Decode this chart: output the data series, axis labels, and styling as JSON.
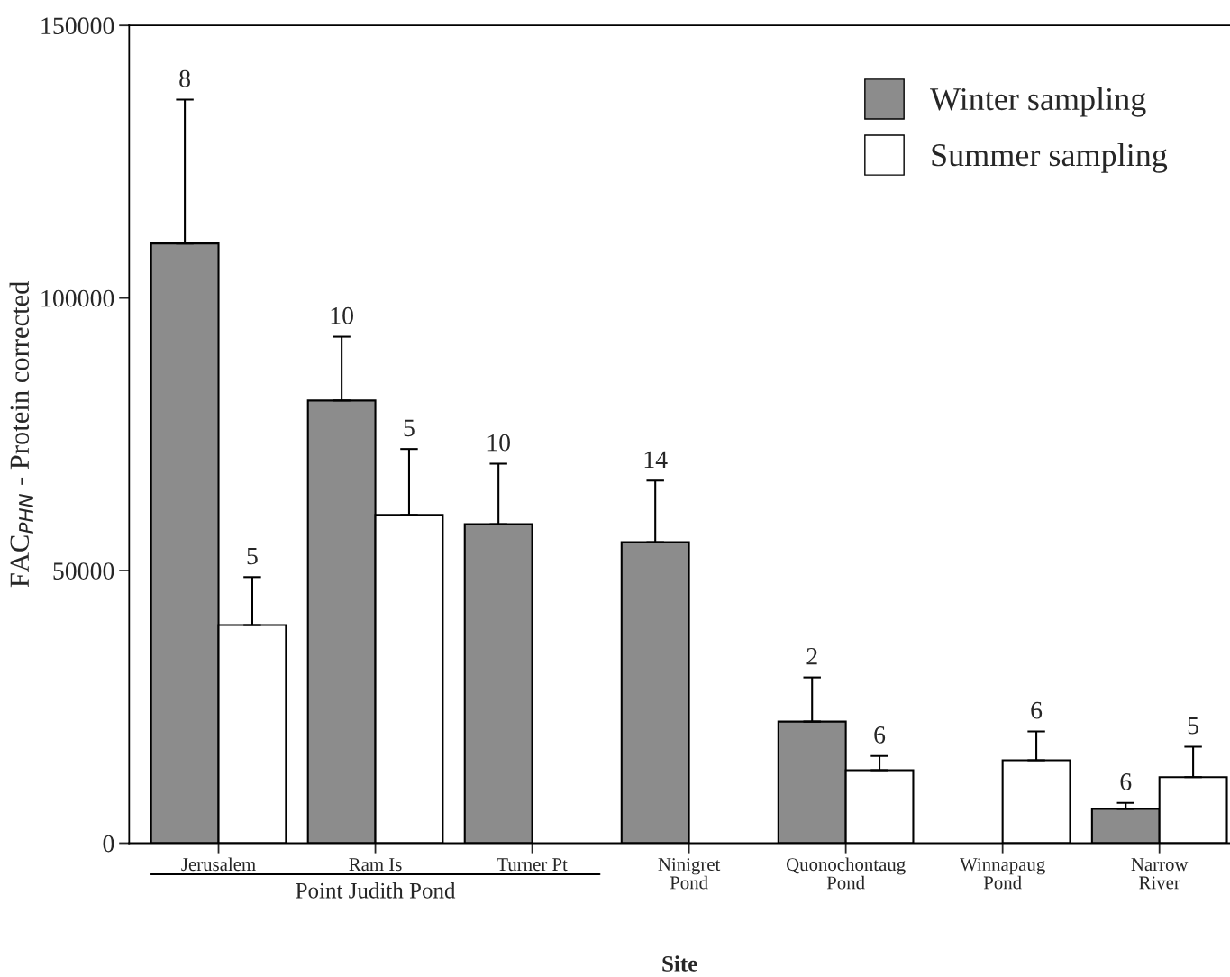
{
  "chart_data": {
    "type": "bar",
    "xlabel": "Site",
    "ylabel": "FAC$_{PHN}$ - Protein corrected",
    "categories": [
      "Jerusalem",
      "Ram Is",
      "Turner Pt",
      "Ninigret\nPond",
      "Quonochontaug\nPond",
      "Winnapaug\nPond",
      "Narrow\nRiver"
    ],
    "series": [
      {
        "name": "Winter sampling",
        "color": "#8c8c8c",
        "values": [
          110000,
          81200,
          58500,
          55200,
          22300,
          null,
          6300
        ],
        "errors": [
          [
            110000,
            136400
          ],
          [
            81200,
            92900
          ],
          [
            58500,
            69600
          ],
          [
            55200,
            66500
          ],
          [
            22300,
            30400
          ],
          null,
          [
            6300,
            7400
          ]
        ]
      },
      {
        "name": "Summer sampling",
        "color": "#ffffff",
        "values": [
          40000,
          60200,
          null,
          null,
          13400,
          15200,
          12100
        ],
        "errors": [
          [
            40000,
            48800
          ],
          [
            60200,
            72300
          ],
          null,
          null,
          [
            13400,
            16000
          ],
          [
            15200,
            20500
          ],
          [
            12100,
            17700
          ]
        ]
      }
    ],
    "ylim": [
      0,
      150000
    ],
    "yticks": [
      0,
      50000,
      100000,
      150000
    ],
    "annotations": [
      "Point Judith Pond",
      "8",
      "5",
      "10",
      "5",
      "10",
      "14",
      "2",
      "6",
      "6",
      "6",
      "5"
    ],
    "legend": "top right",
    "grid": false
  }
}
